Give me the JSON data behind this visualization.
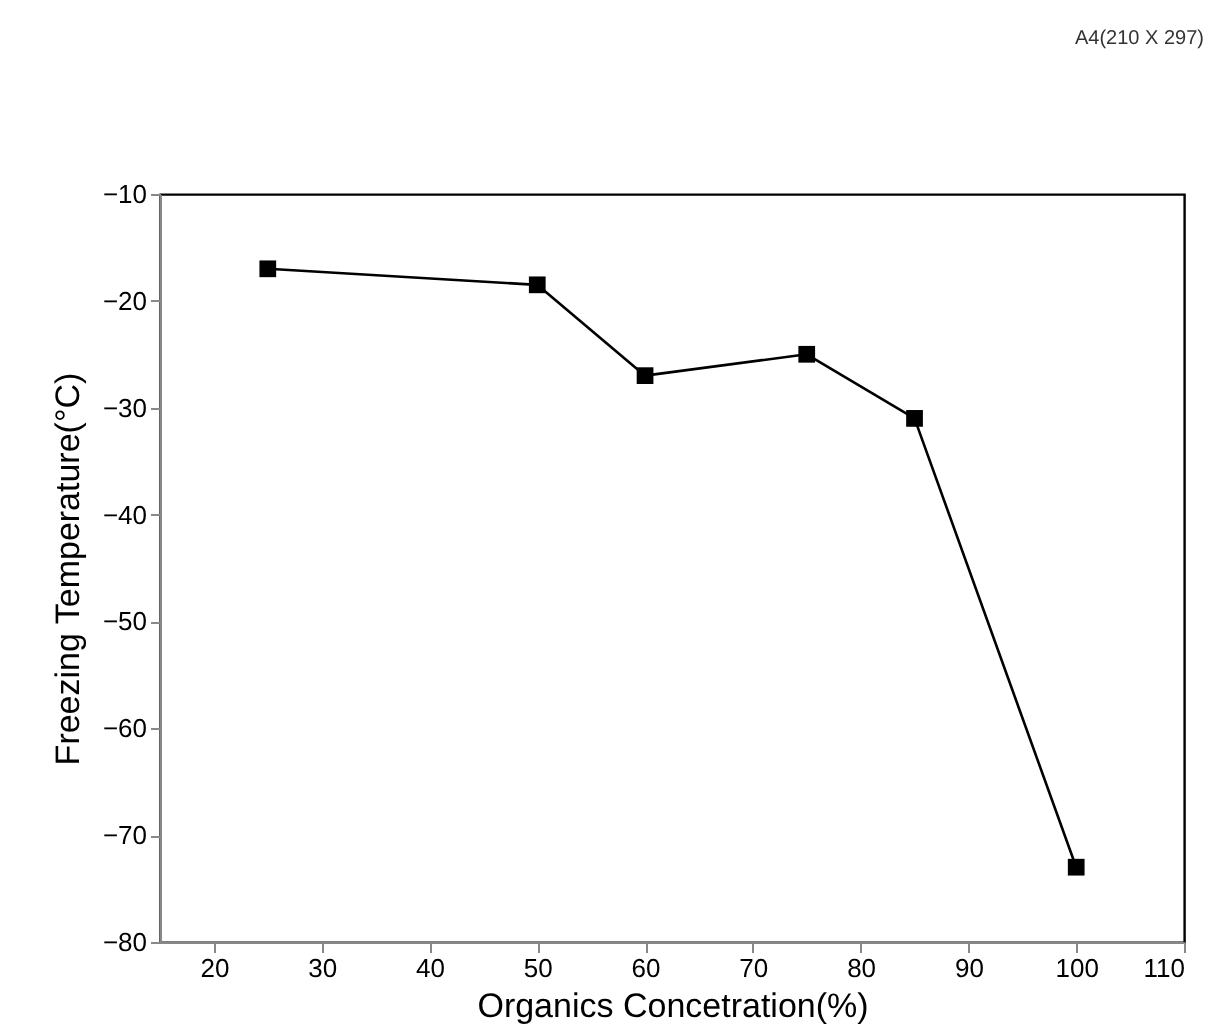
{
  "chart_data": {
    "type": "line",
    "xlabel": "Organics Concetration(%)",
    "ylabel": "Freezing Temperature(°C)",
    "x": [
      25,
      50,
      60,
      75,
      85,
      100
    ],
    "series": [
      {
        "color": "#000000",
        "values": [
          -17,
          -18.5,
          -27,
          -25,
          -31,
          -73
        ]
      }
    ],
    "xlim": [
      15,
      110
    ],
    "xticks": [
      20,
      30,
      40,
      50,
      60,
      70,
      80,
      90,
      100,
      110
    ],
    "ylim": [
      -80,
      -10
    ],
    "yticks": [
      -80,
      -70,
      -60,
      -50,
      -40,
      -30,
      -20,
      -10
    ],
    "marker": "square",
    "line_style": "solid",
    "grid": false,
    "legend": false,
    "annotations": [
      "A4(210 X 297)"
    ]
  }
}
